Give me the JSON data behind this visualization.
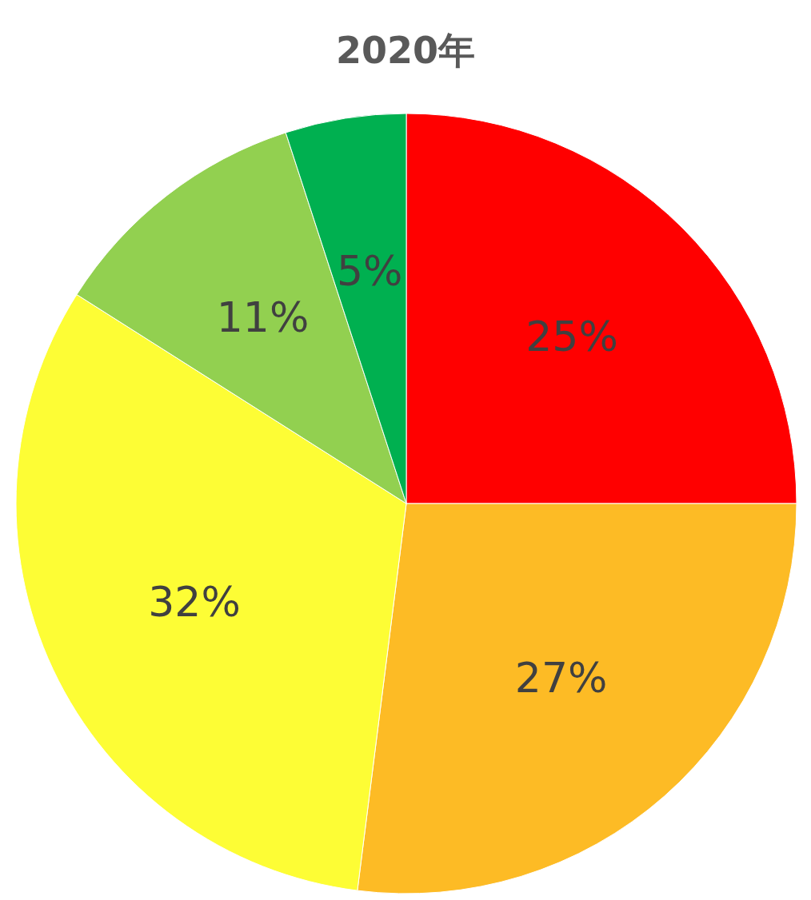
{
  "chart_data": {
    "type": "pie",
    "title": "2020年",
    "categories": [
      null,
      null,
      null,
      null,
      null
    ],
    "values": [
      25,
      27,
      32,
      11,
      5
    ],
    "colors": [
      "#ff0000",
      "#fdbb25",
      "#fdfd35",
      "#92d050",
      "#00b050"
    ],
    "value_labels": [
      "25%",
      "27%",
      "32%",
      "11%",
      "5%"
    ]
  }
}
